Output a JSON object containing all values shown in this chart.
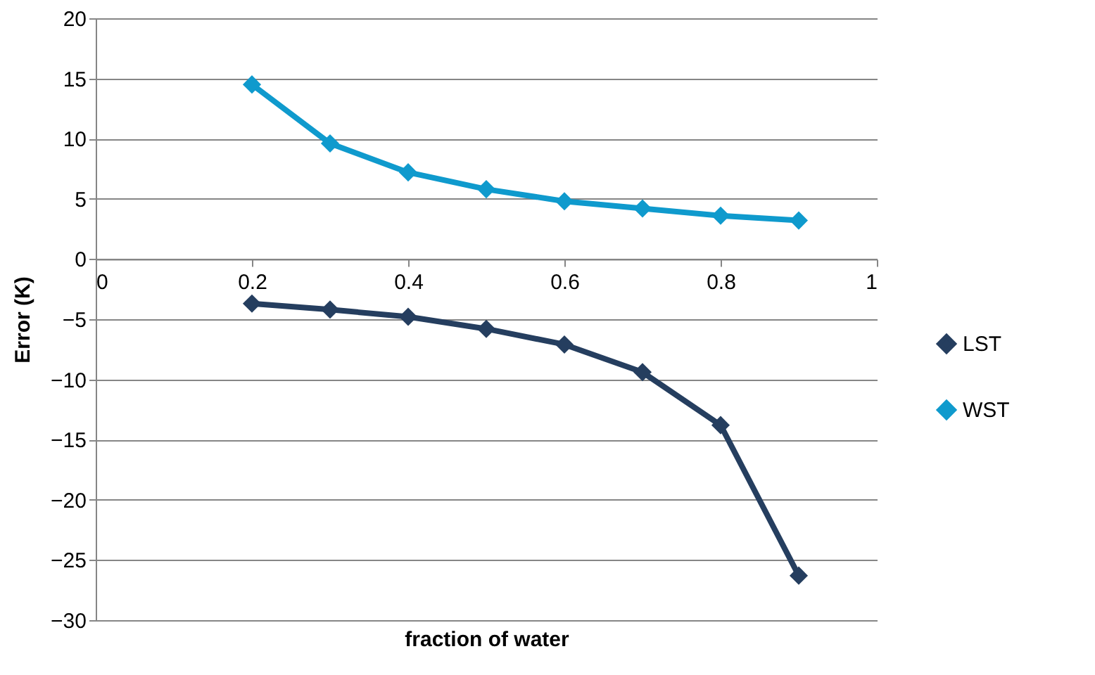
{
  "chart_data": {
    "type": "line",
    "xlabel": "fraction of water",
    "ylabel": "Error (K)",
    "x": [
      0.2,
      0.3,
      0.4,
      0.5,
      0.6,
      0.7,
      0.8,
      0.9
    ],
    "series": [
      {
        "name": "LST",
        "color": "#253e5f",
        "values": [
          -3.7,
          -4.2,
          -4.8,
          -5.8,
          -7.1,
          -9.4,
          -13.8,
          -26.3
        ]
      },
      {
        "name": "WST",
        "color": "#0f9acd",
        "values": [
          14.5,
          9.6,
          7.2,
          5.8,
          4.8,
          4.2,
          3.6,
          3.2
        ]
      }
    ],
    "xlim": [
      0,
      1
    ],
    "xticks": [
      0,
      0.2,
      0.4,
      0.6,
      0.8,
      1
    ],
    "ylim": [
      -30,
      20
    ],
    "yticks": [
      -30,
      -25,
      -20,
      -15,
      -10,
      -5,
      0,
      5,
      10,
      15,
      20
    ],
    "grid": "y",
    "legend": "right",
    "marker": "diamond",
    "line_style": "solid"
  }
}
